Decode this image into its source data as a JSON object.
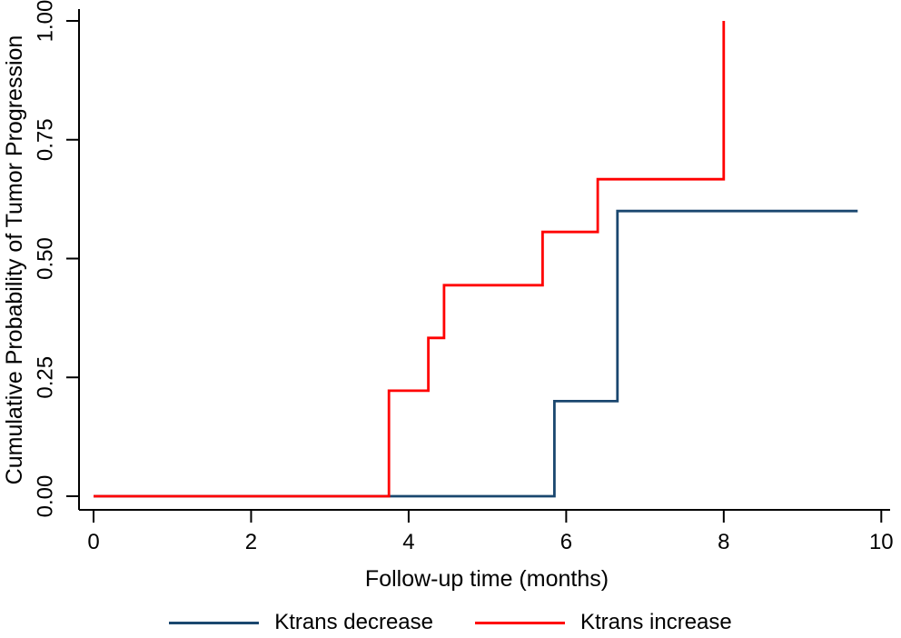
{
  "chart_data": {
    "type": "line",
    "subtype": "step",
    "title": "",
    "xlabel": "Follow-up time (months)",
    "ylabel": "Cumulative Probability of Tumor Progression",
    "xlim": [
      0,
      10
    ],
    "ylim": [
      0,
      1
    ],
    "xticks": [
      "0",
      "2",
      "4",
      "6",
      "8",
      "10"
    ],
    "yticks": [
      "0.00",
      "0.25",
      "0.50",
      "0.75",
      "1.00"
    ],
    "grid": false,
    "legend_position": "bottom",
    "series": [
      {
        "name": "Ktrans decrease",
        "color": "#1a476f",
        "points": [
          [
            0,
            0
          ],
          [
            5.85,
            0
          ],
          [
            5.85,
            0.2
          ],
          [
            6.65,
            0.2
          ],
          [
            6.65,
            0.6
          ],
          [
            9.7,
            0.6
          ]
        ]
      },
      {
        "name": "Ktrans increase",
        "color": "#ff0000",
        "points": [
          [
            0,
            0
          ],
          [
            3.75,
            0
          ],
          [
            3.75,
            0.222
          ],
          [
            4.25,
            0.222
          ],
          [
            4.25,
            0.333
          ],
          [
            4.45,
            0.333
          ],
          [
            4.45,
            0.444
          ],
          [
            5.7,
            0.444
          ],
          [
            5.7,
            0.556
          ],
          [
            6.4,
            0.556
          ],
          [
            6.4,
            0.667
          ],
          [
            8.0,
            0.667
          ],
          [
            8.0,
            1.0
          ]
        ]
      }
    ]
  },
  "legend": {
    "items": [
      {
        "label": "Ktrans decrease",
        "color": "#1a476f"
      },
      {
        "label": "Ktrans increase",
        "color": "#ff0000"
      }
    ]
  },
  "colors": {
    "axis": "#000000",
    "background": "#ffffff"
  }
}
